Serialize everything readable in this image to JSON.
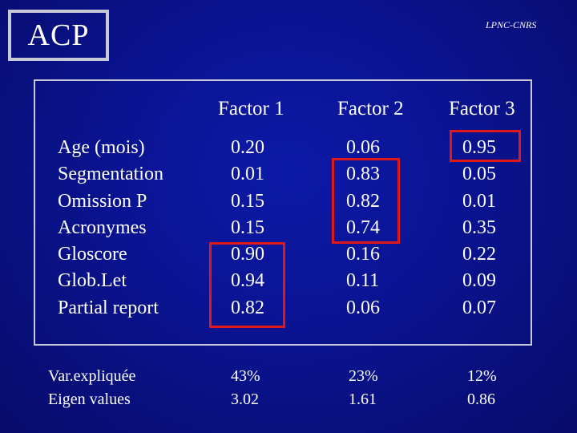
{
  "title": "ACP",
  "lab_label": "LPNC-CNRS",
  "table": {
    "headers": [
      "Factor 1",
      "Factor 2",
      "Factor 3"
    ],
    "rows": [
      {
        "label": "Age (mois)",
        "values": [
          "0.20",
          "0.06",
          "0.95"
        ]
      },
      {
        "label": "Segmentation",
        "values": [
          "0.01",
          "0.83",
          "0.05"
        ]
      },
      {
        "label": "Omission P",
        "values": [
          "0.15",
          "0.82",
          "0.01"
        ]
      },
      {
        "label": "Acronymes",
        "values": [
          "0.15",
          "0.74",
          "0.35"
        ]
      },
      {
        "label": "Gloscore",
        "values": [
          "0.90",
          "0.16",
          "0.22"
        ]
      },
      {
        "label": "Glob.Let",
        "values": [
          "0.94",
          "0.11",
          "0.09"
        ]
      },
      {
        "label": "Partial report",
        "values": [
          "0.82",
          "0.06",
          "0.07"
        ]
      }
    ],
    "footer": [
      {
        "label": "Var.expliquée",
        "values": [
          "43%",
          "23%",
          "12%"
        ]
      },
      {
        "label": "Eigen values",
        "values": [
          "3.02",
          "1.61",
          "0.86"
        ]
      }
    ]
  },
  "highlights": [
    {
      "column": "Factor 1",
      "rows": [
        "Gloscore",
        "Glob.Let",
        "Partial report"
      ]
    },
    {
      "column": "Factor 2",
      "rows": [
        "Segmentation",
        "Omission P",
        "Acronymes"
      ]
    },
    {
      "column": "Factor 3",
      "rows": [
        "Age (mois)"
      ]
    }
  ],
  "colors": {
    "background": "#0a1390",
    "text": "#ffffff",
    "border": "#c8c8d8",
    "highlight": "#e01818"
  }
}
